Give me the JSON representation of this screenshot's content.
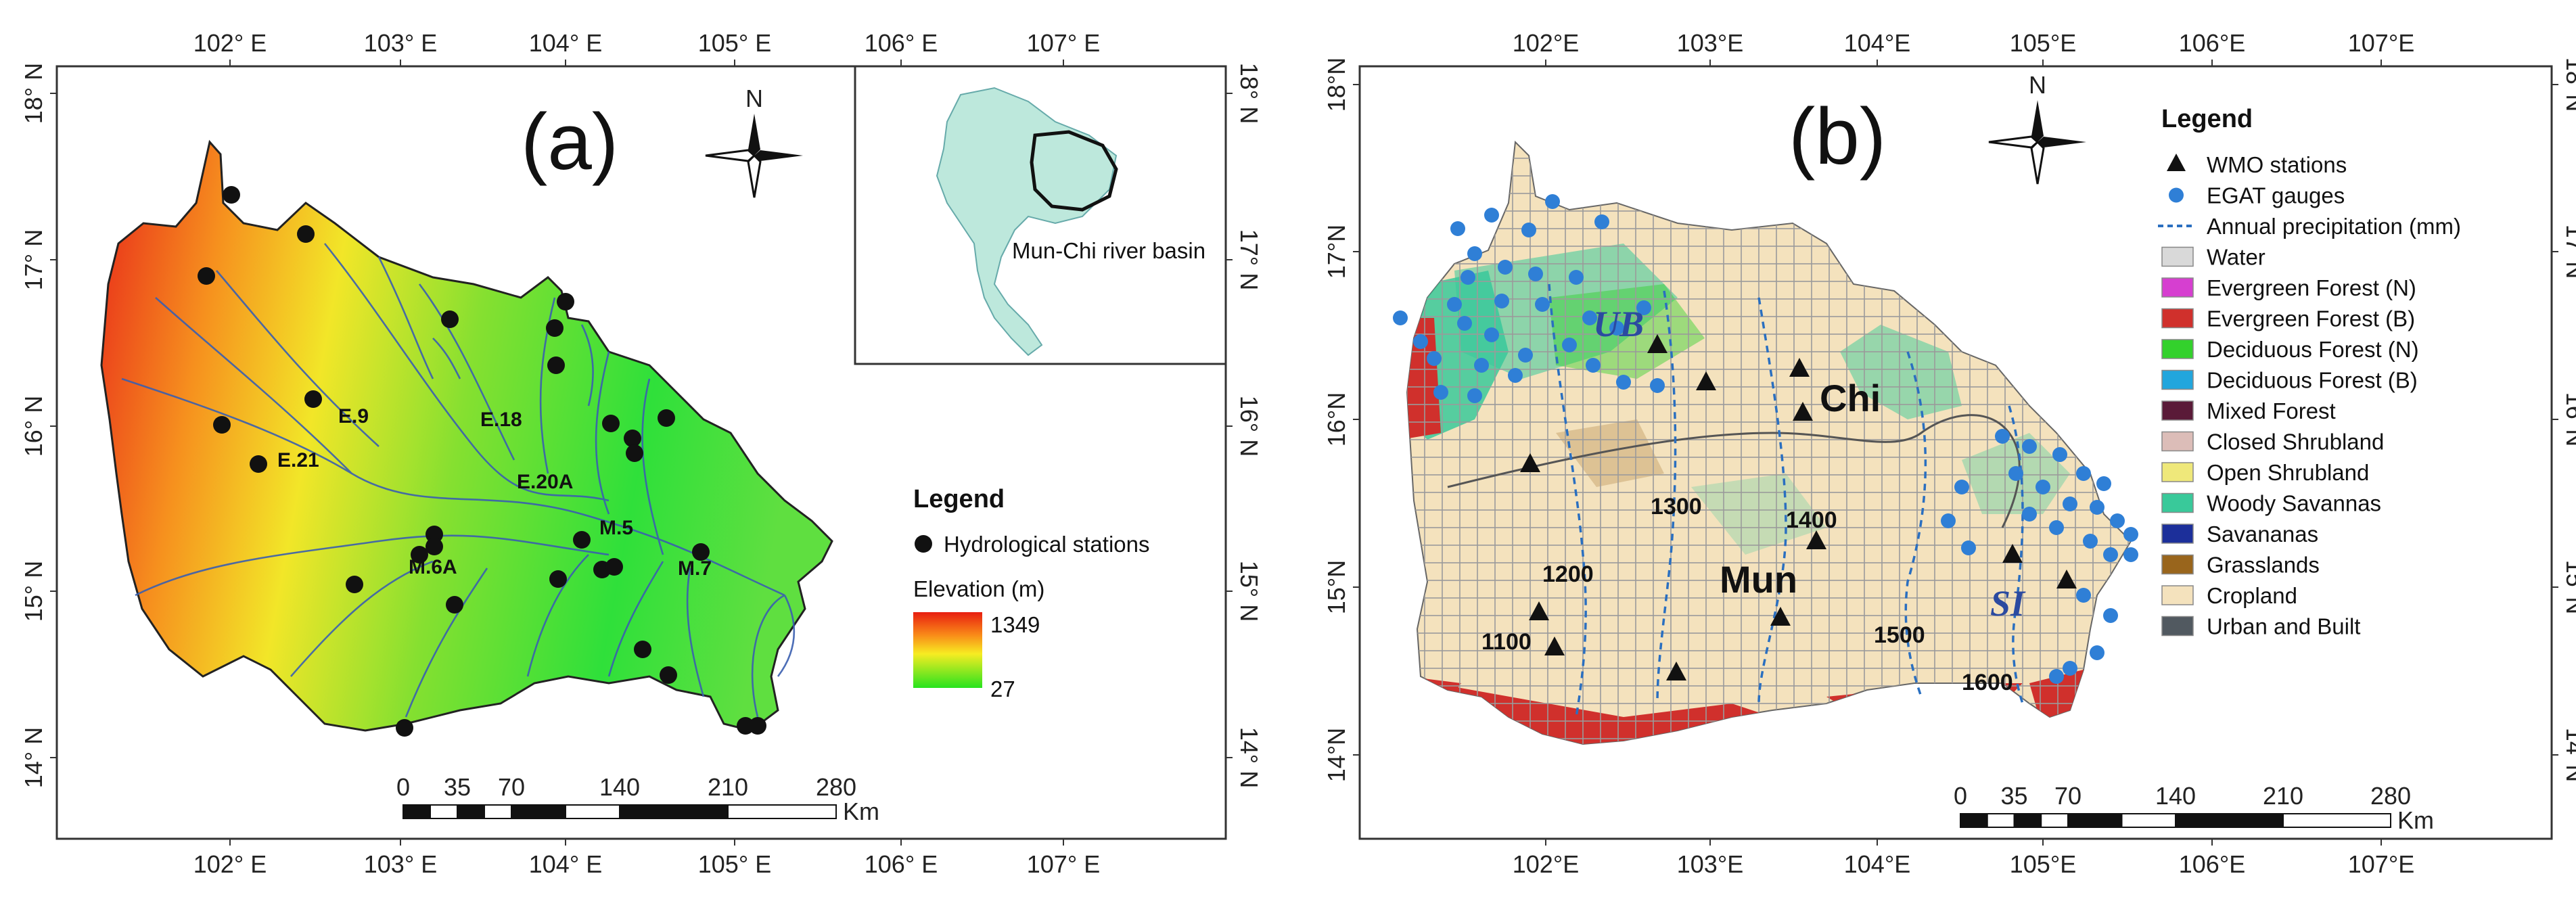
{
  "panel_a": {
    "label": "(a)",
    "x_ticks": [
      "102° E",
      "103° E",
      "104° E",
      "105° E",
      "106° E",
      "107° E"
    ],
    "y_ticks_left": [
      "18° N",
      "17° N",
      "16° N",
      "15° N",
      "14° N"
    ],
    "y_ticks_right": [
      "18° N",
      "17° N",
      "16° N",
      "15° N",
      "14° N"
    ],
    "north": "N",
    "inset_label": "Mun-Chi river basin",
    "station_labels": [
      "E.9",
      "E.18",
      "E.21",
      "E.20A",
      "M.5",
      "M.6A",
      "M.7"
    ],
    "legend_title": "Legend",
    "legend_station": "Hydrological stations",
    "elevation_title": "Elevation (m)",
    "elev_max": "1349",
    "elev_min": "27",
    "scale_ticks": [
      "0",
      "35",
      "70",
      "140",
      "210",
      "280"
    ],
    "scale_unit": "Km"
  },
  "panel_b": {
    "label": "(b)",
    "x_ticks": [
      "102°E",
      "103°E",
      "104°E",
      "105°E",
      "106°E",
      "107°E"
    ],
    "y_ticks_left": [
      "18°N",
      "17°N",
      "16°N",
      "15°N",
      "14°N"
    ],
    "y_ticks_right": [
      "18°N",
      "17°N",
      "16°N",
      "15°N",
      "14°N"
    ],
    "north": "N",
    "place_labels": {
      "ub": "UB",
      "chi": "Chi",
      "mun": "Mun",
      "si": "SI"
    },
    "isohyets": [
      "1300",
      "1400",
      "1200",
      "1100",
      "1500",
      "1600"
    ],
    "legend_title": "Legend",
    "legend_items": [
      {
        "label": "WMO stations",
        "kind": "triangle",
        "color": "#111111"
      },
      {
        "label": "EGAT gauges",
        "kind": "dot",
        "color": "#2f7fd6"
      },
      {
        "label": "Annual precipitation (mm)",
        "kind": "dash",
        "color": "#2a6fc0"
      },
      {
        "label": "Water",
        "kind": "box",
        "color": "#d9d9d9"
      },
      {
        "label": "Evergreen Forest (N)",
        "kind": "box",
        "color": "#d63fd0"
      },
      {
        "label": "Evergreen Forest (B)",
        "kind": "box",
        "color": "#d0302c"
      },
      {
        "label": "Deciduous Forest (N)",
        "kind": "box",
        "color": "#33d12c"
      },
      {
        "label": "Deciduous Forest (B)",
        "kind": "box",
        "color": "#22a6dd"
      },
      {
        "label": "Mixed Forest",
        "kind": "box",
        "color": "#5a1a38"
      },
      {
        "label": "Closed Shrubland",
        "kind": "box",
        "color": "#dcbdb8"
      },
      {
        "label": "Open Shrubland",
        "kind": "box",
        "color": "#efe87a"
      },
      {
        "label": "Woody Savannas",
        "kind": "box",
        "color": "#39c99a"
      },
      {
        "label": "Savananas",
        "kind": "box",
        "color": "#1c2f9a"
      },
      {
        "label": "Grasslands",
        "kind": "box",
        "color": "#99651c"
      },
      {
        "label": "Cropland",
        "kind": "box",
        "color": "#f4e2bd"
      },
      {
        "label": "Urban and Built",
        "kind": "box",
        "color": "#515960"
      }
    ],
    "scale_ticks": [
      "0",
      "35",
      "70",
      "140",
      "210",
      "280"
    ],
    "scale_unit": "Km"
  }
}
